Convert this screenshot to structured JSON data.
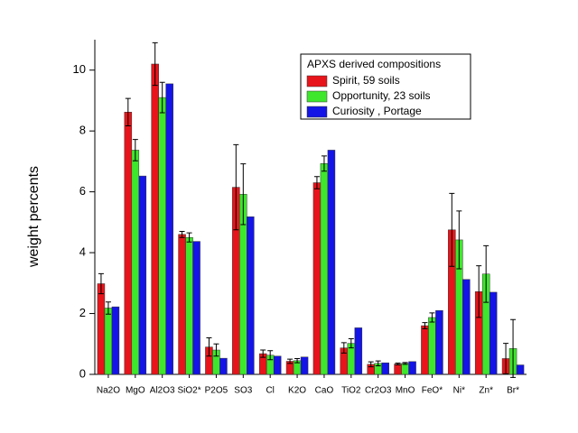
{
  "chart_data": {
    "type": "bar",
    "y_label": "weight percents",
    "legend_title": "APXS derived compositions",
    "categories": [
      "Na2O",
      "MgO",
      "Al2O3",
      "SiO2*",
      "P2O5",
      "SO3",
      "Cl",
      "K2O",
      "CaO",
      "TiO2",
      "Cr2O3",
      "MnO",
      "FeO*",
      "Ni*",
      "Zn*",
      "Br*"
    ],
    "series": [
      {
        "name": "Spirit, 59 soils",
        "color": "#e8141b",
        "values": [
          2.98,
          8.62,
          10.2,
          4.6,
          0.9,
          6.15,
          0.68,
          0.43,
          6.3,
          0.87,
          0.33,
          0.34,
          1.6,
          4.75,
          2.72,
          0.52
        ],
        "errors": [
          0.33,
          0.45,
          0.7,
          0.1,
          0.3,
          1.4,
          0.12,
          0.07,
          0.2,
          0.17,
          0.08,
          0.03,
          0.1,
          1.2,
          0.85,
          0.5
        ]
      },
      {
        "name": "Opportunity, 23 soils",
        "color": "#3ee62c",
        "values": [
          2.18,
          7.37,
          9.1,
          4.5,
          0.8,
          5.92,
          0.63,
          0.45,
          6.93,
          1.02,
          0.36,
          0.36,
          1.87,
          4.42,
          3.3,
          0.85
        ],
        "errors": [
          0.2,
          0.35,
          0.5,
          0.15,
          0.2,
          1.0,
          0.15,
          0.07,
          0.25,
          0.15,
          0.08,
          0.03,
          0.15,
          0.95,
          0.93,
          0.95
        ]
      },
      {
        "name": "Curiosity , Portage",
        "color": "#1414e6",
        "values": [
          2.22,
          6.52,
          9.55,
          4.37,
          0.53,
          5.18,
          0.6,
          0.57,
          7.37,
          1.53,
          0.38,
          0.42,
          2.1,
          3.12,
          2.7,
          0.31
        ]
      }
    ],
    "ylim": [
      0,
      11
    ],
    "yticks": [
      0,
      2,
      4,
      6,
      8,
      10
    ]
  }
}
